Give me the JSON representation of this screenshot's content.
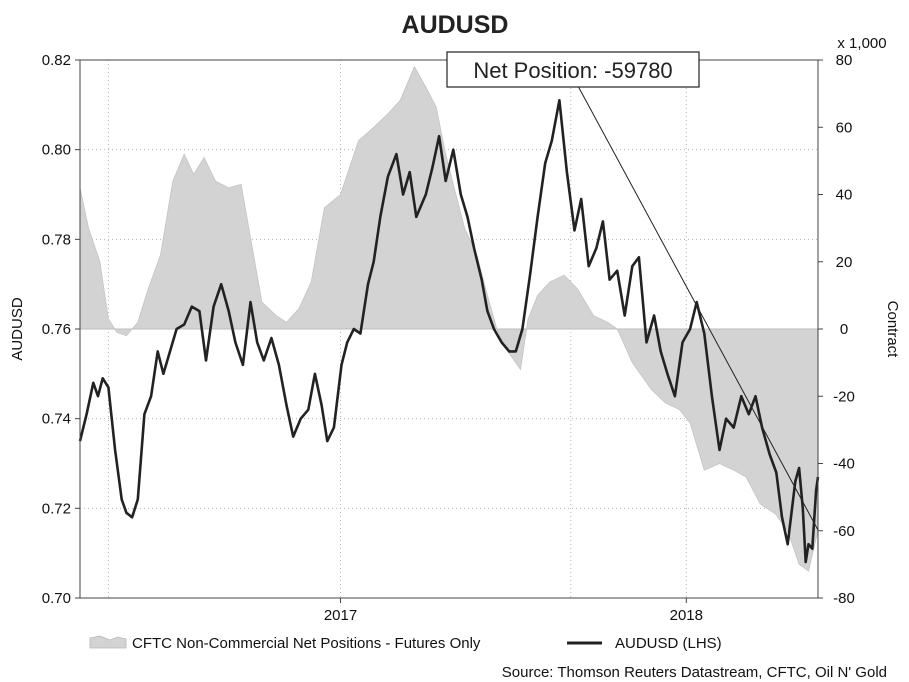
{
  "chart_data": {
    "type": "line",
    "title": "AUDUSD",
    "ylabel": "AUDUSD",
    "y2label": "Contract",
    "y2_multiplier_label": "x 1,000",
    "ylim": [
      0.7,
      0.82
    ],
    "y2lim": [
      -80,
      80
    ],
    "yticks": [
      "0.70",
      "0.72",
      "0.74",
      "0.76",
      "0.78",
      "0.80",
      "0.82"
    ],
    "y2ticks": [
      "-80",
      "-60",
      "-40",
      "-20",
      "0",
      "20",
      "40",
      "60",
      "80"
    ],
    "xlim": [
      "2016-04-01",
      "2018-05-20"
    ],
    "xticks": [
      {
        "date": "2017-01-01",
        "label": "2017"
      },
      {
        "date": "2018-01-01",
        "label": "2018"
      }
    ],
    "x_gridlines": [
      "2016-05-01",
      "2017-01-01",
      "2017-09-01",
      "2018-01-01",
      "2018-09-01"
    ],
    "grid": true,
    "legend_position": "bottom",
    "annotation": "Net Position: -59780",
    "source": "Source: Thomson Reuters Datastream, CFTC, Oil N' Gold",
    "series": [
      {
        "name": "CFTC Non-Commercial Net Positions - Futures Only",
        "axis": "right",
        "style": "area",
        "color": "#d3d3d3",
        "points": [
          [
            "2016-04-01",
            42
          ],
          [
            "2016-04-10",
            30
          ],
          [
            "2016-04-22",
            20
          ],
          [
            "2016-05-01",
            3
          ],
          [
            "2016-05-10",
            -1
          ],
          [
            "2016-05-20",
            -2
          ],
          [
            "2016-06-01",
            2
          ],
          [
            "2016-06-12",
            12
          ],
          [
            "2016-06-25",
            22
          ],
          [
            "2016-07-08",
            44
          ],
          [
            "2016-07-20",
            52
          ],
          [
            "2016-07-30",
            46
          ],
          [
            "2016-08-10",
            51
          ],
          [
            "2016-08-22",
            44
          ],
          [
            "2016-09-05",
            42
          ],
          [
            "2016-09-18",
            43
          ],
          [
            "2016-09-30",
            24
          ],
          [
            "2016-10-10",
            8
          ],
          [
            "2016-10-25",
            4
          ],
          [
            "2016-11-05",
            2
          ],
          [
            "2016-11-18",
            6
          ],
          [
            "2016-12-01",
            14
          ],
          [
            "2016-12-15",
            36
          ],
          [
            "2017-01-01",
            40
          ],
          [
            "2017-01-20",
            56
          ],
          [
            "2017-02-05",
            60
          ],
          [
            "2017-02-20",
            64
          ],
          [
            "2017-03-05",
            68
          ],
          [
            "2017-03-20",
            78
          ],
          [
            "2017-04-01",
            72
          ],
          [
            "2017-04-12",
            66
          ],
          [
            "2017-04-22",
            52
          ],
          [
            "2017-05-01",
            42
          ],
          [
            "2017-05-12",
            30
          ],
          [
            "2017-05-25",
            22
          ],
          [
            "2017-06-05",
            10
          ],
          [
            "2017-06-15",
            0
          ],
          [
            "2017-06-25",
            -6
          ],
          [
            "2017-07-10",
            -12
          ],
          [
            "2017-07-18",
            3
          ],
          [
            "2017-07-28",
            10
          ],
          [
            "2017-08-10",
            14
          ],
          [
            "2017-08-25",
            16
          ],
          [
            "2017-09-08",
            12
          ],
          [
            "2017-09-25",
            4
          ],
          [
            "2017-10-10",
            2
          ],
          [
            "2017-10-20",
            0
          ],
          [
            "2017-11-05",
            -10
          ],
          [
            "2017-11-25",
            -18
          ],
          [
            "2017-12-10",
            -22
          ],
          [
            "2017-12-25",
            -24
          ],
          [
            "2018-01-05",
            -28
          ],
          [
            "2018-01-20",
            -42
          ],
          [
            "2018-02-05",
            -40
          ],
          [
            "2018-02-20",
            -42
          ],
          [
            "2018-03-05",
            -44
          ],
          [
            "2018-03-20",
            -52
          ],
          [
            "2018-04-05",
            -55
          ],
          [
            "2018-04-18",
            -60
          ],
          [
            "2018-04-30",
            -70
          ],
          [
            "2018-05-10",
            -72
          ],
          [
            "2018-05-20",
            -60
          ]
        ]
      },
      {
        "name": "AUDUSD (LHS)",
        "axis": "left",
        "style": "line",
        "color": "#222222",
        "points": [
          [
            "2016-04-01",
            0.735
          ],
          [
            "2016-04-08",
            0.741
          ],
          [
            "2016-04-15",
            0.748
          ],
          [
            "2016-04-20",
            0.745
          ],
          [
            "2016-04-25",
            0.749
          ],
          [
            "2016-05-01",
            0.747
          ],
          [
            "2016-05-08",
            0.733
          ],
          [
            "2016-05-15",
            0.722
          ],
          [
            "2016-05-20",
            0.719
          ],
          [
            "2016-05-26",
            0.718
          ],
          [
            "2016-06-01",
            0.722
          ],
          [
            "2016-06-08",
            0.741
          ],
          [
            "2016-06-15",
            0.745
          ],
          [
            "2016-06-22",
            0.755
          ],
          [
            "2016-06-28",
            0.75
          ],
          [
            "2016-07-05",
            0.755
          ],
          [
            "2016-07-12",
            0.76
          ],
          [
            "2016-07-20",
            0.761
          ],
          [
            "2016-07-28",
            0.765
          ],
          [
            "2016-08-05",
            0.764
          ],
          [
            "2016-08-12",
            0.753
          ],
          [
            "2016-08-20",
            0.765
          ],
          [
            "2016-08-28",
            0.77
          ],
          [
            "2016-09-05",
            0.764
          ],
          [
            "2016-09-12",
            0.757
          ],
          [
            "2016-09-20",
            0.752
          ],
          [
            "2016-09-28",
            0.766
          ],
          [
            "2016-10-05",
            0.757
          ],
          [
            "2016-10-12",
            0.753
          ],
          [
            "2016-10-20",
            0.758
          ],
          [
            "2016-10-28",
            0.752
          ],
          [
            "2016-11-05",
            0.743
          ],
          [
            "2016-11-12",
            0.736
          ],
          [
            "2016-11-20",
            0.74
          ],
          [
            "2016-11-28",
            0.742
          ],
          [
            "2016-12-05",
            0.75
          ],
          [
            "2016-12-12",
            0.743
          ],
          [
            "2016-12-18",
            0.735
          ],
          [
            "2016-12-25",
            0.738
          ],
          [
            "2017-01-02",
            0.752
          ],
          [
            "2017-01-08",
            0.757
          ],
          [
            "2017-01-15",
            0.76
          ],
          [
            "2017-01-22",
            0.759
          ],
          [
            "2017-01-30",
            0.77
          ],
          [
            "2017-02-05",
            0.775
          ],
          [
            "2017-02-12",
            0.785
          ],
          [
            "2017-02-20",
            0.794
          ],
          [
            "2017-03-01",
            0.799
          ],
          [
            "2017-03-08",
            0.79
          ],
          [
            "2017-03-15",
            0.795
          ],
          [
            "2017-03-22",
            0.785
          ],
          [
            "2017-04-01",
            0.79
          ],
          [
            "2017-04-08",
            0.796
          ],
          [
            "2017-04-15",
            0.803
          ],
          [
            "2017-04-22",
            0.793
          ],
          [
            "2017-04-30",
            0.8
          ],
          [
            "2017-05-08",
            0.79
          ],
          [
            "2017-05-15",
            0.785
          ],
          [
            "2017-05-22",
            0.778
          ],
          [
            "2017-05-30",
            0.771
          ],
          [
            "2017-06-05",
            0.764
          ],
          [
            "2017-06-12",
            0.76
          ],
          [
            "2017-06-20",
            0.757
          ],
          [
            "2017-06-28",
            0.755
          ],
          [
            "2017-07-05",
            0.755
          ],
          [
            "2017-07-12",
            0.76
          ],
          [
            "2017-07-20",
            0.772
          ],
          [
            "2017-07-28",
            0.785
          ],
          [
            "2017-08-05",
            0.797
          ],
          [
            "2017-08-12",
            0.802
          ],
          [
            "2017-08-20",
            0.811
          ],
          [
            "2017-08-28",
            0.795
          ],
          [
            "2017-09-05",
            0.782
          ],
          [
            "2017-09-12",
            0.789
          ],
          [
            "2017-09-20",
            0.774
          ],
          [
            "2017-09-28",
            0.778
          ],
          [
            "2017-10-05",
            0.784
          ],
          [
            "2017-10-12",
            0.771
          ],
          [
            "2017-10-20",
            0.773
          ],
          [
            "2017-10-28",
            0.763
          ],
          [
            "2017-11-05",
            0.774
          ],
          [
            "2017-11-12",
            0.776
          ],
          [
            "2017-11-20",
            0.757
          ],
          [
            "2017-11-28",
            0.763
          ],
          [
            "2017-12-05",
            0.755
          ],
          [
            "2017-12-12",
            0.75
          ],
          [
            "2017-12-20",
            0.745
          ],
          [
            "2017-12-28",
            0.757
          ],
          [
            "2018-01-05",
            0.76
          ],
          [
            "2018-01-12",
            0.766
          ],
          [
            "2018-01-20",
            0.759
          ],
          [
            "2018-01-28",
            0.745
          ],
          [
            "2018-02-05",
            0.733
          ],
          [
            "2018-02-12",
            0.74
          ],
          [
            "2018-02-20",
            0.738
          ],
          [
            "2018-02-28",
            0.745
          ],
          [
            "2018-03-08",
            0.741
          ],
          [
            "2018-03-15",
            0.745
          ],
          [
            "2018-03-22",
            0.738
          ],
          [
            "2018-03-30",
            0.732
          ],
          [
            "2018-04-06",
            0.728
          ],
          [
            "2018-04-12",
            0.718
          ],
          [
            "2018-04-18",
            0.712
          ],
          [
            "2018-04-22",
            0.719
          ],
          [
            "2018-04-26",
            0.726
          ],
          [
            "2018-04-30",
            0.729
          ],
          [
            "2018-05-04",
            0.72
          ],
          [
            "2018-05-07",
            0.708
          ],
          [
            "2018-05-10",
            0.712
          ],
          [
            "2018-05-14",
            0.711
          ],
          [
            "2018-05-18",
            0.724
          ],
          [
            "2018-05-20",
            0.727
          ]
        ]
      }
    ]
  }
}
